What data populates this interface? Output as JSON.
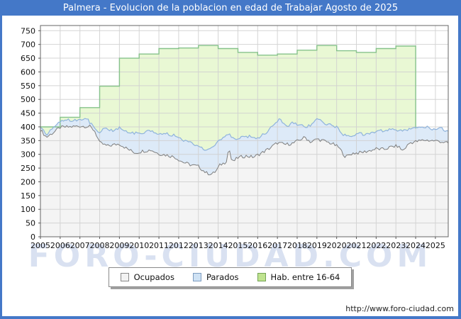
{
  "window": {
    "title": "Palmera - Evolucion de la poblacion en edad de Trabajar Agosto de 2025"
  },
  "watermark": "FORO-CIUDAD.COM",
  "footer": {
    "url": "http://www.foro-ciudad.com"
  },
  "colors": {
    "frame_blue": "#4478c8",
    "title_text": "#ffffff",
    "plot_border": "#666666",
    "gridline": "#d0d0d0",
    "hab_fill": "#e9f8d4",
    "hab_stroke": "#86c28b",
    "parados_fill": "#ddeaf8",
    "parados_stroke": "#8fb3dc",
    "ocupados_fill": "#f4f4f4",
    "ocupados_stroke": "#7e7e7e",
    "axis_text": "#111111"
  },
  "legend": {
    "items": [
      {
        "label": "Ocupados",
        "swatch": "#f2f2f2",
        "swatch_border": "#888888"
      },
      {
        "label": "Parados",
        "swatch": "#cfe2f4",
        "swatch_border": "#7d9cc0"
      },
      {
        "label": "Hab. entre 16-64",
        "swatch": "#bfe38f",
        "swatch_border": "#74a355"
      }
    ]
  },
  "chart_data": {
    "type": "area",
    "title": "Palmera - Evolucion de la poblacion en edad de Trabajar Agosto de 2025",
    "x_ticks": [
      "2005",
      "2006",
      "2007",
      "2008",
      "2009",
      "2010",
      "2011",
      "2012",
      "2013",
      "2014",
      "2015",
      "2016",
      "2017",
      "2018",
      "2019",
      "2020",
      "2021",
      "2022",
      "2023",
      "2024",
      "2025"
    ],
    "x_range": [
      2005,
      2025.65
    ],
    "y_axis": {
      "min": 0,
      "max": 750,
      "step": 50
    },
    "grid": true,
    "legend_position": "bottom",
    "series": [
      {
        "name": "Hab. entre 16-64",
        "kind": "annual_step_area",
        "years": [
          2005,
          2006,
          2007,
          2008,
          2009,
          2010,
          2011,
          2012,
          2013,
          2014,
          2015,
          2016,
          2017,
          2018,
          2019,
          2020,
          2021,
          2022,
          2023
        ],
        "values": [
          400,
          435,
          470,
          548,
          650,
          665,
          685,
          687,
          696,
          685,
          671,
          661,
          665,
          679,
          696,
          677,
          671,
          685,
          694
        ],
        "ends_at": 2024.0
      },
      {
        "name": "Parados",
        "kind": "band_top_monthly",
        "anchors": [
          [
            2005.0,
            402
          ],
          [
            2005.3,
            372
          ],
          [
            2005.7,
            398
          ],
          [
            2006.0,
            418
          ],
          [
            2006.3,
            430
          ],
          [
            2006.6,
            420
          ],
          [
            2007.0,
            428
          ],
          [
            2007.35,
            430
          ],
          [
            2007.7,
            398
          ],
          [
            2008.0,
            380
          ],
          [
            2008.3,
            396
          ],
          [
            2008.6,
            386
          ],
          [
            2009.0,
            396
          ],
          [
            2009.4,
            382
          ],
          [
            2009.8,
            376
          ],
          [
            2010.2,
            380
          ],
          [
            2010.6,
            384
          ],
          [
            2011.0,
            372
          ],
          [
            2011.4,
            374
          ],
          [
            2011.8,
            368
          ],
          [
            2012.2,
            352
          ],
          [
            2012.6,
            342
          ],
          [
            2013.0,
            332
          ],
          [
            2013.45,
            313
          ],
          [
            2013.8,
            330
          ],
          [
            2014.1,
            352
          ],
          [
            2014.55,
            372
          ],
          [
            2014.8,
            355
          ],
          [
            2015.2,
            362
          ],
          [
            2015.6,
            367
          ],
          [
            2016.0,
            360
          ],
          [
            2016.5,
            382
          ],
          [
            2016.9,
            415
          ],
          [
            2017.1,
            430
          ],
          [
            2017.5,
            400
          ],
          [
            2017.8,
            416
          ],
          [
            2018.1,
            406
          ],
          [
            2018.5,
            400
          ],
          [
            2018.8,
            412
          ],
          [
            2019.0,
            435
          ],
          [
            2019.3,
            414
          ],
          [
            2019.7,
            406
          ],
          [
            2020.0,
            400
          ],
          [
            2020.3,
            372
          ],
          [
            2020.7,
            368
          ],
          [
            2021.1,
            376
          ],
          [
            2021.5,
            372
          ],
          [
            2022.0,
            380
          ],
          [
            2022.4,
            388
          ],
          [
            2022.8,
            392
          ],
          [
            2023.2,
            384
          ],
          [
            2023.6,
            390
          ],
          [
            2024.0,
            394
          ],
          [
            2024.3,
            404
          ],
          [
            2024.7,
            396
          ],
          [
            2025.0,
            390
          ],
          [
            2025.3,
            396
          ],
          [
            2025.65,
            381
          ]
        ]
      },
      {
        "name": "Ocupados",
        "kind": "line_area_monthly",
        "anchors": [
          [
            2005.0,
            390
          ],
          [
            2005.3,
            362
          ],
          [
            2005.7,
            382
          ],
          [
            2006.0,
            398
          ],
          [
            2006.5,
            400
          ],
          [
            2007.0,
            403
          ],
          [
            2007.5,
            401
          ],
          [
            2007.75,
            385
          ],
          [
            2008.0,
            342
          ],
          [
            2008.4,
            330
          ],
          [
            2008.8,
            336
          ],
          [
            2009.0,
            338
          ],
          [
            2009.4,
            320
          ],
          [
            2009.8,
            305
          ],
          [
            2010.2,
            312
          ],
          [
            2010.6,
            316
          ],
          [
            2011.0,
            302
          ],
          [
            2011.4,
            297
          ],
          [
            2011.8,
            290
          ],
          [
            2012.2,
            272
          ],
          [
            2012.6,
            262
          ],
          [
            2013.0,
            256
          ],
          [
            2013.4,
            232
          ],
          [
            2013.7,
            228
          ],
          [
            2013.9,
            240
          ],
          [
            2014.1,
            262
          ],
          [
            2014.4,
            272
          ],
          [
            2014.55,
            325
          ],
          [
            2014.7,
            270
          ],
          [
            2015.0,
            288
          ],
          [
            2015.4,
            294
          ],
          [
            2015.8,
            290
          ],
          [
            2016.2,
            305
          ],
          [
            2016.6,
            322
          ],
          [
            2017.0,
            342
          ],
          [
            2017.4,
            336
          ],
          [
            2017.8,
            340
          ],
          [
            2018.1,
            352
          ],
          [
            2018.4,
            362
          ],
          [
            2018.7,
            344
          ],
          [
            2019.0,
            356
          ],
          [
            2019.4,
            348
          ],
          [
            2019.8,
            338
          ],
          [
            2020.1,
            326
          ],
          [
            2020.45,
            290
          ],
          [
            2020.8,
            304
          ],
          [
            2021.2,
            306
          ],
          [
            2021.6,
            312
          ],
          [
            2022.0,
            320
          ],
          [
            2022.4,
            318
          ],
          [
            2022.8,
            328
          ],
          [
            2023.1,
            330
          ],
          [
            2023.35,
            313
          ],
          [
            2023.7,
            342
          ],
          [
            2024.0,
            346
          ],
          [
            2024.4,
            352
          ],
          [
            2024.8,
            350
          ],
          [
            2025.2,
            348
          ],
          [
            2025.65,
            340
          ]
        ]
      }
    ]
  }
}
